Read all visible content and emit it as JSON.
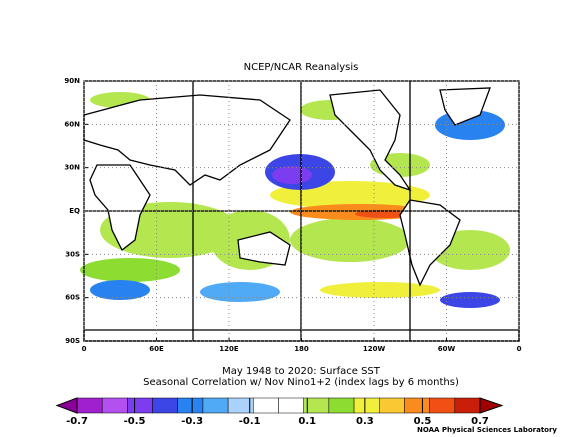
{
  "chart_data": {
    "type": "map",
    "title": "NCEP/NCAR Reanalysis",
    "subtitle": [
      "May 1948 to 2020: Surface SST",
      "Seasonal Correlation w/ Nov Nino1+2 (index lags by 6 months)"
    ],
    "xlim": [
      0,
      360
    ],
    "ylim": [
      -90,
      90
    ],
    "xticks": [
      0,
      {
        "value": 60,
        "label": "60E"
      },
      {
        "value": 120,
        "label": "120E"
      },
      180,
      {
        "value": 240,
        "label": "120W"
      },
      {
        "value": 300,
        "label": "60W"
      },
      {
        "value": 360,
        "label": "0"
      }
    ],
    "yticks": [
      {
        "value": 90,
        "label": "90N"
      },
      {
        "value": 60,
        "label": "60N"
      },
      {
        "value": 30,
        "label": "30N"
      },
      {
        "value": 0,
        "label": "EQ"
      },
      {
        "value": -30,
        "label": "30S"
      },
      {
        "value": -60,
        "label": "60S"
      },
      {
        "value": -90,
        "label": "90S"
      }
    ],
    "grid": true,
    "colorbar": {
      "ticks": [
        -0.7,
        -0.5,
        -0.3,
        -0.1,
        0.1,
        0.3,
        0.5,
        0.7
      ],
      "colors": [
        "#8b0099",
        "#a020d0",
        "#b450f0",
        "#7c3cf0",
        "#3c46e6",
        "#2882f0",
        "#50aaf5",
        "#aad2fa",
        "#ffffff",
        "#ffffff",
        "#b4e650",
        "#8cdc32",
        "#f0f03c",
        "#fac832",
        "#fa8c1e",
        "#f05014",
        "#c81e0a",
        "#a00000"
      ]
    },
    "credit": "NOAA Physical Sciences Laboratory"
  }
}
